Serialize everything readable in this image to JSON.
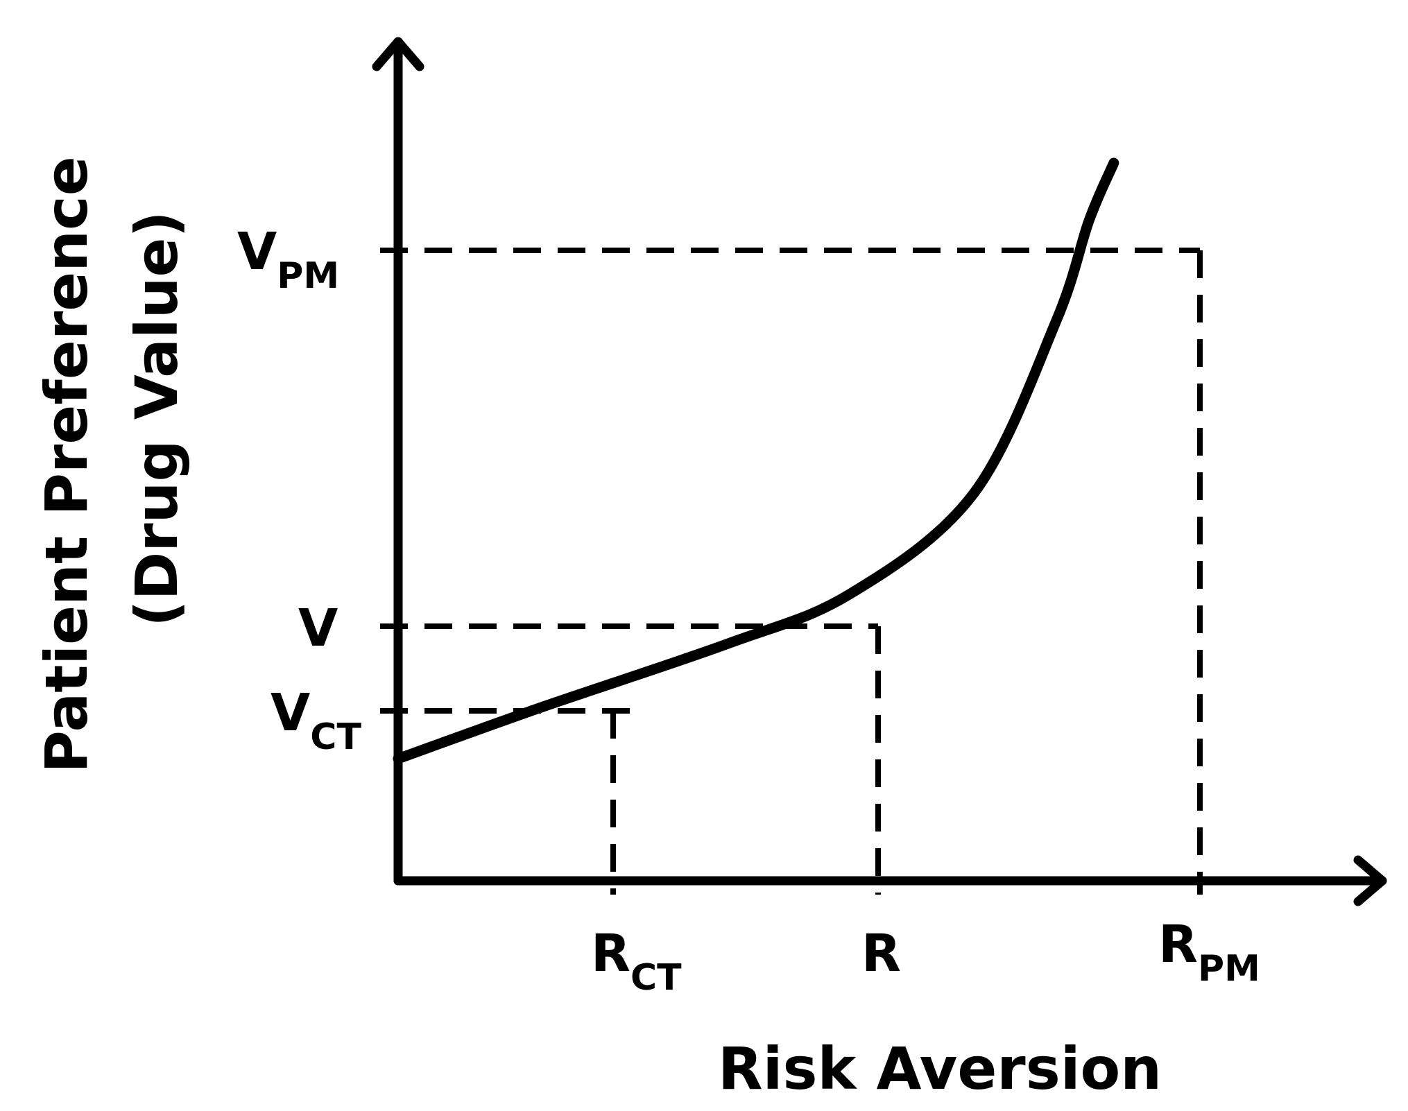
{
  "diagram": {
    "colors": {
      "ink": "#000000",
      "background": "#ffffff"
    },
    "y_axis_title": {
      "line1": "Patient Preference",
      "line2": "(Drug Value)"
    },
    "x_axis_title": "Risk Aversion",
    "y_marks": {
      "v_pm": {
        "main": "V",
        "sub": "PM"
      },
      "v": {
        "main": "V",
        "sub": ""
      },
      "v_ct": {
        "main": "V",
        "sub": "CT"
      }
    },
    "x_marks": {
      "r_ct": {
        "main": "R",
        "sub": "CT"
      },
      "r": {
        "main": "R",
        "sub": ""
      },
      "r_pm": {
        "main": "R",
        "sub": "PM"
      }
    },
    "curve": {
      "shape": "convex, increasing",
      "points": [
        {
          "x": 0,
          "y": 0.17
        },
        {
          "x": 0.17,
          "y": 0.24
        },
        {
          "x": 0.4,
          "y": 0.33
        },
        {
          "x": 0.55,
          "y": 0.4
        },
        {
          "x": 0.7,
          "y": 0.54
        },
        {
          "x": 0.8,
          "y": 0.78
        },
        {
          "x": 0.84,
          "y": 0.92
        },
        {
          "x": 0.87,
          "y": 1.0
        }
      ],
      "reference_points": {
        "r_ct": {
          "x": 0.17,
          "y": 0.24
        },
        "r": {
          "x": 0.4,
          "y": 0.33
        },
        "r_pm": {
          "x": 0.84,
          "y": 0.92
        }
      }
    }
  }
}
